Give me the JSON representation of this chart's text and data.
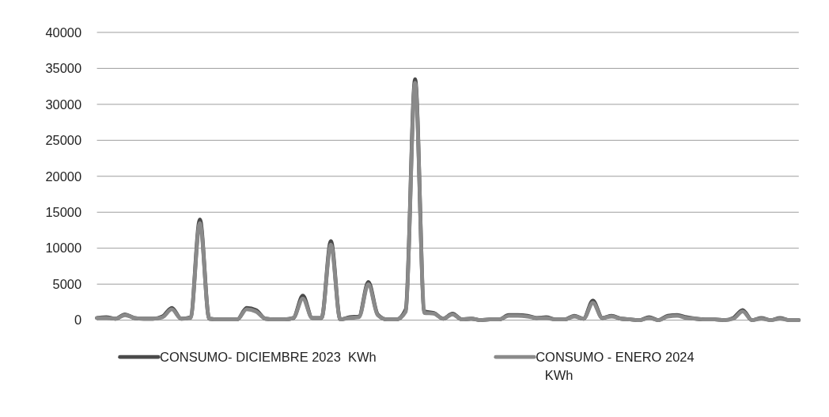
{
  "chart_data": {
    "type": "line",
    "categories": [
      null,
      null,
      null,
      null,
      null,
      null,
      null,
      null,
      null,
      null,
      null,
      null,
      null,
      null,
      null,
      null,
      null,
      null,
      null,
      null,
      null,
      null,
      null,
      null,
      null,
      null,
      null,
      null,
      null,
      null,
      null,
      null,
      null,
      null,
      null,
      null,
      null,
      null,
      null,
      null,
      null,
      null,
      null,
      null,
      null,
      null,
      null,
      null,
      null,
      null,
      null,
      null,
      null,
      null,
      null,
      null,
      null,
      null,
      null,
      null,
      null,
      null,
      null,
      null,
      null,
      null,
      null,
      null,
      null,
      null,
      null,
      null,
      null,
      null,
      null,
      null
    ],
    "series": [
      {
        "name": "CONSUMO- DICIEMBRE 2023  KWh",
        "color": "#4a4a4a",
        "values": [
          300,
          400,
          200,
          800,
          300,
          200,
          200,
          500,
          1700,
          200,
          400,
          14000,
          200,
          100,
          100,
          100,
          1700,
          1400,
          200,
          100,
          100,
          300,
          3400,
          300,
          300,
          11000,
          100,
          400,
          500,
          5300,
          800,
          100,
          100,
          1500,
          33500,
          1200,
          1000,
          200,
          900,
          100,
          200,
          0,
          100,
          100,
          700,
          700,
          600,
          300,
          400,
          100,
          100,
          600,
          200,
          2700,
          300,
          600,
          200,
          100,
          0,
          400,
          0,
          600,
          700,
          400,
          200,
          100,
          100,
          0,
          300,
          1400,
          0,
          300,
          0,
          300,
          0,
          0
        ]
      },
      {
        "name": "CONSUMO - ENERO 2024 KWh",
        "color": "#8a8a8a",
        "values": [
          300,
          300,
          200,
          700,
          300,
          200,
          200,
          400,
          1500,
          200,
          300,
          13500,
          200,
          100,
          100,
          100,
          1500,
          1200,
          200,
          100,
          100,
          300,
          3000,
          300,
          300,
          10500,
          100,
          300,
          400,
          5000,
          700,
          100,
          100,
          1200,
          33000,
          1000,
          900,
          200,
          800,
          100,
          200,
          0,
          100,
          100,
          600,
          600,
          500,
          300,
          300,
          100,
          100,
          500,
          200,
          2400,
          300,
          500,
          200,
          100,
          0,
          300,
          0,
          500,
          600,
          300,
          200,
          100,
          100,
          0,
          200,
          1200,
          0,
          200,
          0,
          200,
          0,
          0
        ]
      }
    ],
    "ylim": [
      0,
      40000
    ],
    "yticks": [
      0,
      5000,
      10000,
      15000,
      20000,
      25000,
      30000,
      35000,
      40000
    ],
    "grid": "y",
    "legend": "bottom",
    "marker": "none",
    "line_style": "solid",
    "tick_labels": "y"
  }
}
